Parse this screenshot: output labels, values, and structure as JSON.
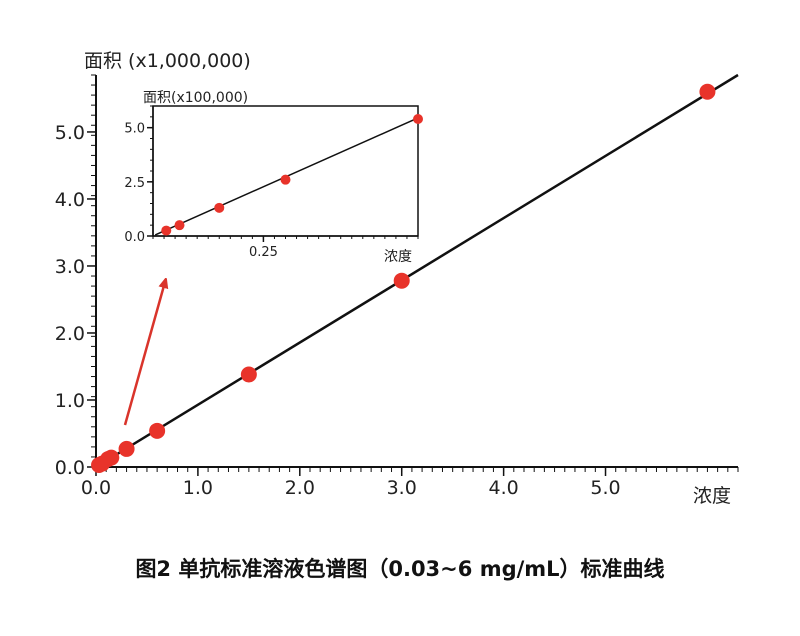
{
  "caption": "图2 单抗标准溶液色谱图（0.03~6 mg/mL）标准曲线",
  "colors": {
    "points": "#e8332a",
    "line": "#111111",
    "arrow": "#d9342b"
  },
  "chart_data": [
    {
      "type": "scatter",
      "panel": "main",
      "ylabel": "面积 (x1,000,000)",
      "xlabel": "浓度",
      "xlim": [
        0,
        6.3
      ],
      "ylim": [
        0,
        5.85
      ],
      "xticks": [
        0.0,
        1.0,
        2.0,
        3.0,
        4.0,
        5.0
      ],
      "xtick_labels": [
        "0.0",
        "1.0",
        "2.0",
        "3.0",
        "4.0",
        "5.0"
      ],
      "yticks": [
        0.0,
        1.0,
        2.0,
        3.0,
        4.0,
        5.0
      ],
      "ytick_labels": [
        "0.0",
        "1.0",
        "2.0",
        "3.0",
        "4.0",
        "5.0"
      ],
      "fit_line": {
        "x": [
          0,
          6.3
        ],
        "y": [
          0,
          5.85
        ]
      },
      "points": [
        {
          "x": 0.03,
          "y": 0.03
        },
        {
          "x": 0.06,
          "y": 0.05
        },
        {
          "x": 0.12,
          "y": 0.12
        },
        {
          "x": 0.15,
          "y": 0.14
        },
        {
          "x": 0.3,
          "y": 0.27
        },
        {
          "x": 0.6,
          "y": 0.54
        },
        {
          "x": 1.5,
          "y": 1.38
        },
        {
          "x": 3.0,
          "y": 2.78
        },
        {
          "x": 6.0,
          "y": 5.6
        }
      ]
    },
    {
      "type": "scatter",
      "panel": "inset",
      "ylabel": "面积(x100,000)",
      "xlabel": "浓度",
      "xlim": [
        0,
        0.6
      ],
      "ylim": [
        0,
        6.0
      ],
      "xticks": [
        0.25
      ],
      "xtick_labels": [
        "0.25"
      ],
      "yticks": [
        0.0,
        2.5,
        5.0
      ],
      "ytick_labels": [
        "0.0",
        "2.5",
        "5.0"
      ],
      "fit_line": {
        "x": [
          0.005,
          0.6
        ],
        "y": [
          0.05,
          5.45
        ]
      },
      "points": [
        {
          "x": 0.03,
          "y": 0.25
        },
        {
          "x": 0.06,
          "y": 0.5
        },
        {
          "x": 0.15,
          "y": 1.3
        },
        {
          "x": 0.3,
          "y": 2.6
        },
        {
          "x": 0.6,
          "y": 5.4
        }
      ]
    }
  ]
}
